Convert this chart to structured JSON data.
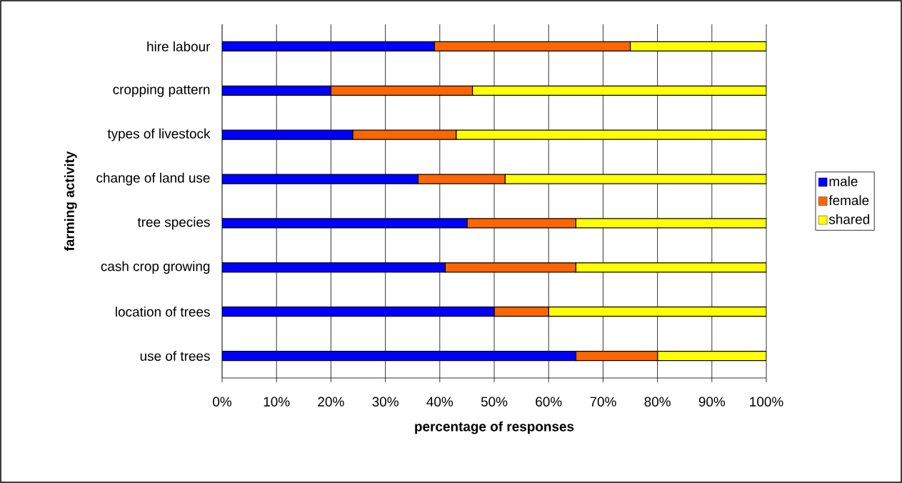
{
  "chart_data": {
    "type": "bar",
    "orientation": "horizontal",
    "stacked": true,
    "xlabel": "percentage of responses",
    "ylabel": "farming activity",
    "categories": [
      "hire labour",
      "cropping pattern",
      "types of livestock",
      "change of land use",
      "tree species",
      "cash crop growing",
      "location of trees",
      "use of trees"
    ],
    "series": [
      {
        "name": "male",
        "color": "#0000ff",
        "values": [
          39,
          20,
          24,
          36,
          45,
          41,
          50,
          65
        ]
      },
      {
        "name": "female",
        "color": "#ff6600",
        "values": [
          36,
          26,
          19,
          16,
          20,
          24,
          10,
          15
        ]
      },
      {
        "name": "shared",
        "color": "#ffff00",
        "values": [
          25,
          54,
          57,
          48,
          35,
          35,
          40,
          20
        ]
      }
    ],
    "xlim": [
      0,
      100
    ],
    "xticks": [
      {
        "value": 0,
        "label": "0%"
      },
      {
        "value": 10,
        "label": "10%"
      },
      {
        "value": 20,
        "label": "20%"
      },
      {
        "value": 30,
        "label": "30%"
      },
      {
        "value": 40,
        "label": "40%"
      },
      {
        "value": 50,
        "label": "50%"
      },
      {
        "value": 60,
        "label": "60%"
      },
      {
        "value": 70,
        "label": "70%"
      },
      {
        "value": 80,
        "label": "80%"
      },
      {
        "value": 90,
        "label": "90%"
      },
      {
        "value": 100,
        "label": "100%"
      }
    ],
    "grid": "x",
    "legend": "right"
  }
}
